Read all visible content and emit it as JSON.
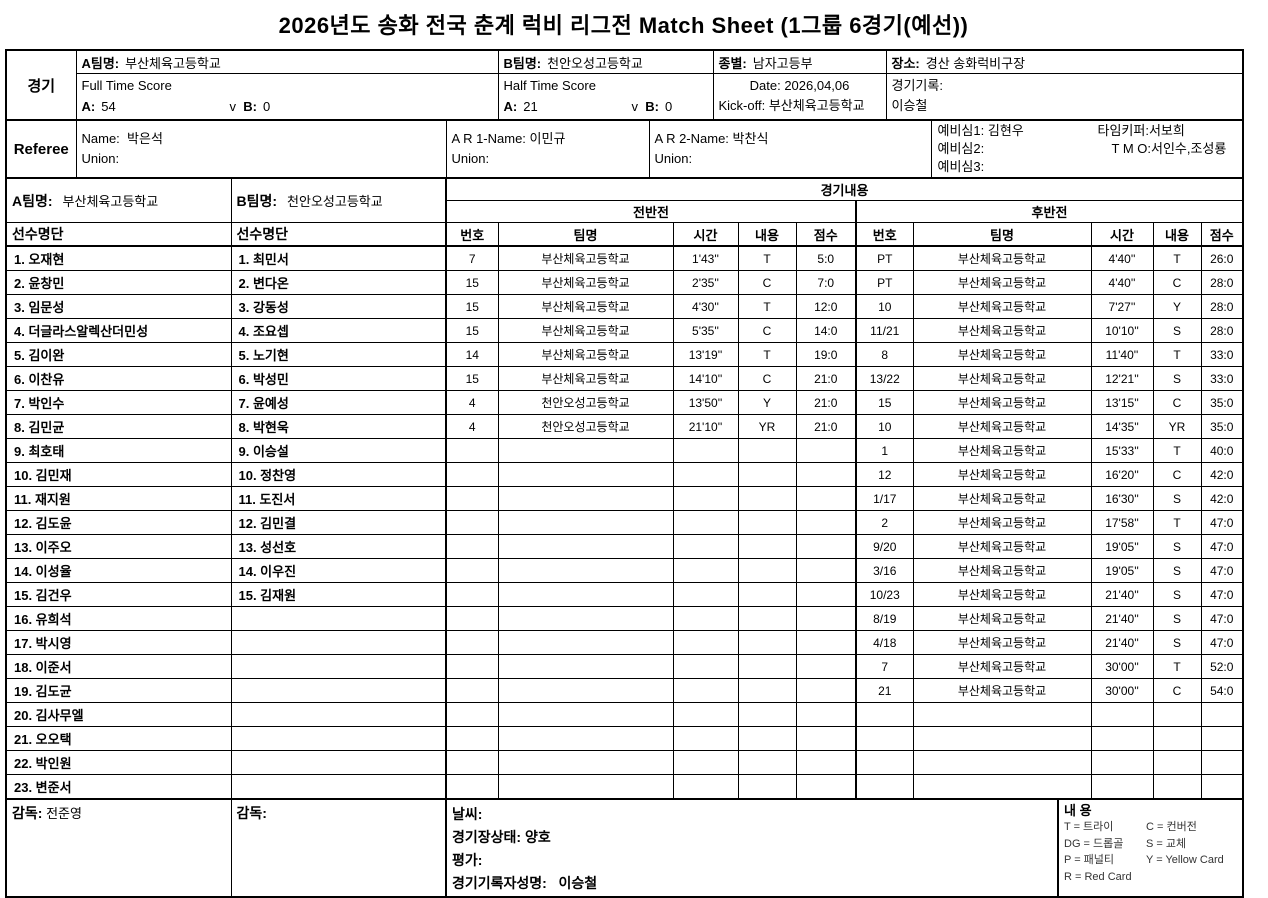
{
  "title": "2026년도 송화 전국 춘계 럭비 리그전  Match Sheet (1그룹 6경기(예선))",
  "match_info": {
    "section_label": "경기",
    "team_a_label": "A팀명:",
    "team_a": "부산체육고등학교",
    "team_b_label": "B팀명:",
    "team_b": "천안오성고등학교",
    "category_label": "종별:",
    "category": "남자고등부",
    "venue_label": "장소:",
    "venue": "경산 송화럭비구장",
    "full_time_label": "Full Time Score",
    "half_time_label": "Half Time Score",
    "a_label": "A:",
    "b_label": "B:",
    "vs_label": "v",
    "full_time_a": "54",
    "full_time_b": "0",
    "half_time_a": "21",
    "half_time_b": "0",
    "date_label": "Date:",
    "date": "2026,04,06",
    "kickoff_label": "Kick-off:",
    "kickoff": "부산체육고등학교",
    "record_label": "경기기록:",
    "recorder": "이승철"
  },
  "referee": {
    "section_label": "Referee",
    "name_label": "Name:",
    "name": "박은석",
    "union_label": "Union:",
    "ar1_label": "A R 1-Name:",
    "ar1_name": "이민규",
    "ar2_label": "A R 2-Name:",
    "ar2_name": "박찬식",
    "reserve1_label": "예비심1:",
    "reserve1": "김현우",
    "reserve2_label": "예비심2:",
    "reserve2": "",
    "reserve3_label": "예비심3:",
    "reserve3": "",
    "timekeeper_label": "타임키퍼:",
    "timekeeper": "서보희",
    "tmo_label": "T M O:",
    "tmo": "서인수,조성룡"
  },
  "roster": {
    "team_a_label": "A팀명:",
    "team_a": "부산체육고등학교",
    "team_b_label": "B팀명:",
    "team_b": "천안오성고등학교",
    "header": "선수명단",
    "team_a_players": [
      "1. 오재현",
      "2. 윤창민",
      "3. 임문성",
      "4. 더글라스알렉산더민성",
      "5. 김이완",
      "6. 이찬유",
      "7. 박인수",
      "8. 김민균",
      "9. 최호태",
      "10. 김민재",
      "11. 재지원",
      "12. 김도윤",
      "13. 이주오",
      "14. 이성율",
      "15. 김건우",
      "16. 유희석",
      "17. 박시영",
      "18. 이준서",
      "19. 김도균",
      "20. 김사무엘",
      "21. 오오택",
      "22. 박인원",
      "23. 변준서"
    ],
    "team_b_players": [
      "1. 최민서",
      "2. 변다온",
      "3. 강동성",
      "4. 조요셉",
      "5. 노기현",
      "6. 박성민",
      "7. 윤예성",
      "8. 박현욱",
      "9. 이승설",
      "10. 정찬영",
      "11. 도진서",
      "12. 김민결",
      "13. 성선호",
      "14. 이우진",
      "15. 김재원"
    ]
  },
  "match_content": {
    "title": "경기내용",
    "columns": [
      "번호",
      "팀명",
      "시간",
      "내용",
      "점수"
    ],
    "first_half": {
      "label": "전반전",
      "rows": [
        [
          "7",
          "부산체육고등학교",
          "1'43''",
          "T",
          "5:0"
        ],
        [
          "15",
          "부산체육고등학교",
          "2'35''",
          "C",
          "7:0"
        ],
        [
          "15",
          "부산체육고등학교",
          "4'30''",
          "T",
          "12:0"
        ],
        [
          "15",
          "부산체육고등학교",
          "5'35''",
          "C",
          "14:0"
        ],
        [
          "14",
          "부산체육고등학교",
          "13'19''",
          "T",
          "19:0"
        ],
        [
          "15",
          "부산체육고등학교",
          "14'10''",
          "C",
          "21:0"
        ],
        [
          "4",
          "천안오성고등학교",
          "13'50''",
          "Y",
          "21:0"
        ],
        [
          "4",
          "천안오성고등학교",
          "21'10''",
          "YR",
          "21:0"
        ]
      ]
    },
    "second_half": {
      "label": "후반전",
      "rows": [
        [
          "PT",
          "부산체육고등학교",
          "4'40''",
          "T",
          "26:0"
        ],
        [
          "PT",
          "부산체육고등학교",
          "4'40''",
          "C",
          "28:0"
        ],
        [
          "10",
          "부산체육고등학교",
          "7'27''",
          "Y",
          "28:0"
        ],
        [
          "11/21",
          "부산체육고등학교",
          "10'10''",
          "S",
          "28:0"
        ],
        [
          "8",
          "부산체육고등학교",
          "11'40''",
          "T",
          "33:0"
        ],
        [
          "13/22",
          "부산체육고등학교",
          "12'21''",
          "S",
          "33:0"
        ],
        [
          "15",
          "부산체육고등학교",
          "13'15''",
          "C",
          "35:0"
        ],
        [
          "10",
          "부산체육고등학교",
          "14'35''",
          "YR",
          "35:0"
        ],
        [
          "1",
          "부산체육고등학교",
          "15'33''",
          "T",
          "40:0"
        ],
        [
          "12",
          "부산체육고등학교",
          "16'20''",
          "C",
          "42:0"
        ],
        [
          "1/17",
          "부산체육고등학교",
          "16'30''",
          "S",
          "42:0"
        ],
        [
          "2",
          "부산체육고등학교",
          "17'58''",
          "T",
          "47:0"
        ],
        [
          "9/20",
          "부산체육고등학교",
          "19'05''",
          "S",
          "47:0"
        ],
        [
          "3/16",
          "부산체육고등학교",
          "19'05''",
          "S",
          "47:0"
        ],
        [
          "10/23",
          "부산체육고등학교",
          "21'40''",
          "S",
          "47:0"
        ],
        [
          "8/19",
          "부산체육고등학교",
          "21'40''",
          "S",
          "47:0"
        ],
        [
          "4/18",
          "부산체육고등학교",
          "21'40''",
          "S",
          "47:0"
        ],
        [
          "7",
          "부산체육고등학교",
          "30'00''",
          "T",
          "52:0"
        ],
        [
          "21",
          "부산체육고등학교",
          "30'00''",
          "C",
          "54:0"
        ]
      ]
    }
  },
  "footer": {
    "coach_a_label": "감독:",
    "coach_a": "전준영",
    "coach_b_label": "감독:",
    "coach_b": "",
    "weather_label": "날씨:",
    "condition_label": "경기장상태:",
    "condition": "양호",
    "evaluation_label": "평가:",
    "recorder_label": "경기기록자성명:",
    "recorder": "이승철",
    "legend": {
      "title": "내  용",
      "rows": [
        [
          "T = 트라이",
          "C = 컨버전"
        ],
        [
          "DG = 드롭골",
          "S = 교체"
        ],
        [
          "P = 패널티",
          "Y = Yellow Card"
        ],
        [
          "R = Red Card",
          ""
        ]
      ]
    }
  }
}
